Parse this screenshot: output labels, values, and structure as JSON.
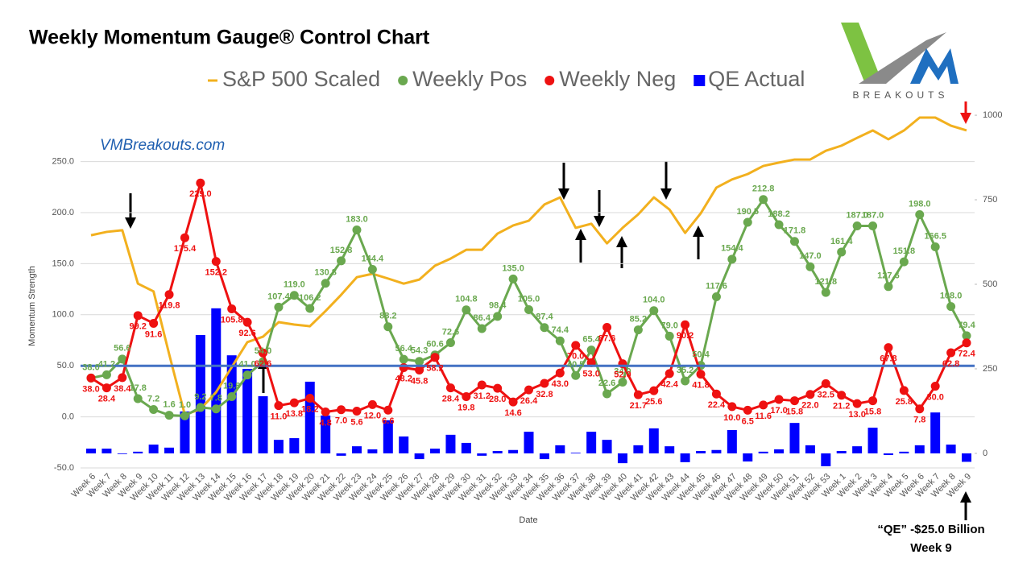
{
  "chart_data": {
    "type": "line",
    "title": "Weekly Momentum Gauge® Control Chart",
    "x_label": "Date",
    "y_label": "Momentum Strength",
    "site_label": "VMBreakouts.com",
    "logo_text": "BREAKOUTS",
    "annotations": [
      "“QE” -$25.0 Billion",
      "Week 9"
    ],
    "categories": [
      "Week 6",
      "Week 7",
      "Week 8",
      "Week 9",
      "Week 10",
      "Week 11",
      "Week 12",
      "Week 13",
      "Week 14",
      "Week 15",
      "Week 16",
      "Week 17",
      "Week 18",
      "Week 19",
      "Week 20",
      "Week 21",
      "Week 22",
      "Week 23",
      "Week 24",
      "Week 25",
      "Week 26",
      "Week 27",
      "Week 28",
      "Week 29",
      "Week 30",
      "Week 31",
      "Week 32",
      "Week 33",
      "Week 34",
      "Week 35",
      "Week 36",
      "Week 37",
      "Week 38",
      "Week 39",
      "Week 40",
      "Week 41",
      "Week 42",
      "Week 43",
      "Week 44",
      "Week 45",
      "Week 46",
      "Week 47",
      "Week 48",
      "Week 49",
      "Week 50",
      "Week 51",
      "Week 52",
      "Week 53",
      "Week 1",
      "Week 2",
      "Week 3",
      "Week 4",
      "Week 5",
      "Week 6",
      "Week 7",
      "Week 8",
      "Week 9"
    ],
    "series": [
      {
        "name": "S&P 500 Scaled",
        "color": "#f2b01e",
        "axis": "y2",
        "values": [
          645,
          655,
          660,
          502,
          479,
          293,
          114,
          131,
          181,
          255,
          329,
          345,
          388,
          381,
          376,
          421,
          469,
          521,
          531,
          517,
          502,
          514,
          555,
          576,
          602,
          602,
          650,
          674,
          688,
          736,
          757,
          667,
          679,
          621,
          667,
          707,
          757,
          721,
          652,
          710,
          786,
          810,
          826,
          850,
          860,
          869,
          869,
          895,
          910,
          933,
          955,
          929,
          955,
          993,
          993,
          969,
          955
        ]
      },
      {
        "name": "Weekly Pos",
        "color": "#6aa84f",
        "values": [
          38.0,
          41.2,
          56.6,
          17.8,
          7.2,
          1.6,
          1.0,
          9.2,
          7.8,
          19.8,
          41.0,
          54.0,
          107.4,
          119.0,
          106.2,
          130.8,
          152.8,
          183.0,
          144.4,
          88.2,
          56.4,
          54.3,
          60.6,
          72.6,
          104.8,
          86.4,
          98.4,
          135.0,
          105.0,
          87.4,
          74.4,
          40.5,
          65.4,
          22.6,
          34.0,
          85.2,
          104.0,
          79.0,
          35.2,
          50.4,
          117.6,
          154.4,
          190.5,
          212.8,
          188.2,
          171.8,
          147.0,
          121.8,
          161.4,
          187.0,
          187.0,
          127.6,
          151.8,
          198.0,
          166.5,
          108.0,
          79.4
        ],
        "value_labels": [
          "38.0",
          "41.2",
          "56.6",
          "17.8",
          "7.2",
          "1.6",
          "1.0",
          "9.2",
          "7.8",
          "19.8",
          "41.0",
          "54.0",
          "107.4",
          "119.0",
          "106.2",
          "130.8",
          "152.8",
          "183.0",
          "144.4",
          "88.2",
          "56.4",
          "54.3",
          "60.6",
          "72.6",
          "104.8",
          "86.4",
          "98.4",
          "135.0",
          "105.0",
          "87.4",
          "74.4",
          "40.5",
          "65.4",
          "22.6",
          "34.0",
          "85.2",
          "104.0",
          "79.0",
          "35.2",
          "50.4",
          "117.6",
          "154.4",
          "190.5",
          "212.8",
          "188.2",
          "171.8",
          "147.0",
          "121.8",
          "161.4",
          "187.0",
          "187.0",
          "127.6",
          "151.8",
          "198.0",
          "166.5",
          "108.0",
          "79.4"
        ]
      },
      {
        "name": "Weekly Neg",
        "color": "#ee1111",
        "values": [
          38.0,
          28.4,
          38.4,
          99.2,
          91.6,
          119.8,
          175.4,
          229.0,
          152.2,
          105.8,
          92.6,
          62.6,
          11.0,
          13.8,
          18.2,
          4.8,
          7.0,
          5.6,
          12.0,
          6.6,
          48.2,
          45.8,
          58.2,
          28.4,
          19.8,
          31.2,
          28.0,
          14.6,
          26.4,
          32.8,
          43.0,
          70.0,
          53.0,
          87.6,
          52.0,
          21.7,
          25.6,
          42.4,
          90.2,
          41.8,
          22.4,
          10.0,
          6.5,
          11.6,
          17.0,
          15.8,
          22.0,
          32.5,
          21.2,
          13.0,
          15.8,
          67.8,
          25.8,
          7.8,
          30.0,
          62.8,
          72.4
        ],
        "value_labels": [
          "38.0",
          "28.4",
          "38.4",
          "99.2",
          "91.6",
          "119.8",
          "175.4",
          "229.0",
          "152.2",
          "105.8",
          "92.6",
          "62.6",
          "11.0",
          "13.8",
          "18.2",
          "4.8",
          "7.0",
          "5.6",
          "12.0",
          "6.6",
          "48.2",
          "45.8",
          "58.2",
          "28.4",
          "19.8",
          "31.2",
          "28.0",
          "14.6",
          "26.4",
          "32.8",
          "43.0",
          "70.0",
          "53.0",
          "87.6",
          "52.0",
          "21.7",
          "25.6",
          "42.4",
          "90.2",
          "41.8",
          "22.4",
          "10.0",
          "6.5",
          "11.6",
          "17.0",
          "15.8",
          "22.0",
          "32.5",
          "21.2",
          "13.0",
          "15.8",
          "67.8",
          "25.8",
          "7.8",
          "30.0",
          "62.8",
          "72.4"
        ]
      },
      {
        "name": "QE Actual",
        "color": "#0000ff",
        "axis": "y2",
        "type": "bar",
        "values": [
          14,
          14,
          -2,
          5,
          26,
          17,
          124,
          350,
          429,
          290,
          250,
          169,
          40,
          45,
          212,
          112,
          -7,
          21,
          12,
          98,
          50,
          -17,
          14,
          55,
          31,
          -7,
          7,
          10,
          64,
          -17,
          24,
          2,
          64,
          40,
          -29,
          24,
          74,
          21,
          -26,
          7,
          10,
          69,
          -24,
          5,
          12,
          90,
          24,
          -38,
          7,
          21,
          76,
          -5,
          5,
          24,
          121,
          26,
          -25
        ]
      }
    ],
    "ylim": [
      -50,
      300
    ],
    "yticks": [
      {
        "value": -50,
        "label": "-50.0"
      },
      {
        "value": 0,
        "label": "0.0"
      },
      {
        "value": 50,
        "label": "50.0"
      },
      {
        "value": 100,
        "label": "100.0"
      },
      {
        "value": 150,
        "label": "150.0"
      },
      {
        "value": 200,
        "label": "200.0"
      },
      {
        "value": 250,
        "label": "250.0"
      }
    ],
    "y2lim": [
      -43,
      1014
    ],
    "y2ticks": [
      0,
      250,
      500,
      750,
      1000
    ],
    "grid": true,
    "reference_line": {
      "value": 50,
      "color": "#4472c4"
    }
  }
}
